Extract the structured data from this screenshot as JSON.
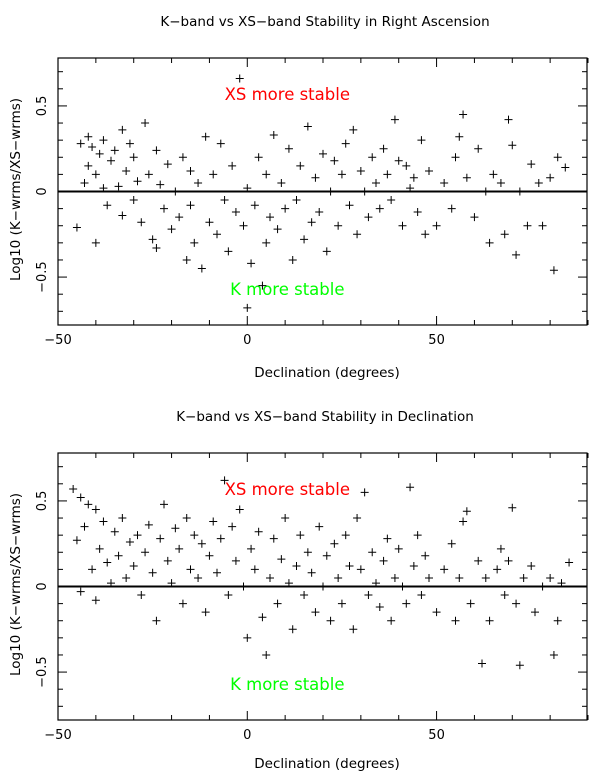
{
  "chart_data": [
    {
      "type": "scatter",
      "title": "K−band vs XS−band Stability in Right Ascension",
      "xlabel": "Declination (degrees)",
      "ylabel": "Log10 (K−wrms/XS−wrms)",
      "xlim": [
        -50,
        90
      ],
      "ylim": [
        -0.78,
        0.78
      ],
      "xticks": [
        -50,
        0,
        50
      ],
      "yticks": [
        -0.5,
        0,
        0.5
      ],
      "xtick_labels": [
        "−50",
        "0",
        "50"
      ],
      "ytick_labels": [
        "−0.5",
        "0",
        "0.5"
      ],
      "reference_line_y": 0,
      "marker": "+",
      "annotations": [
        {
          "text": "XS more stable",
          "x": 0,
          "y": 0.57,
          "color": "#ff0000"
        },
        {
          "text": "K more stable",
          "x": 0,
          "y": -0.57,
          "color": "#00ff00"
        }
      ],
      "points": [
        [
          -45,
          -0.21
        ],
        [
          -44,
          0.28
        ],
        [
          -43,
          0.05
        ],
        [
          -42,
          0.32
        ],
        [
          -42,
          0.15
        ],
        [
          -41,
          0.26
        ],
        [
          -40,
          0.1
        ],
        [
          -40,
          -0.3
        ],
        [
          -39,
          0.22
        ],
        [
          -38,
          0.3
        ],
        [
          -38,
          0.02
        ],
        [
          -37,
          -0.08
        ],
        [
          -36,
          0.18
        ],
        [
          -35,
          0.24
        ],
        [
          -34,
          0.03
        ],
        [
          -33,
          0.36
        ],
        [
          -33,
          -0.14
        ],
        [
          -32,
          0.12
        ],
        [
          -31,
          0.28
        ],
        [
          -30,
          -0.05
        ],
        [
          -30,
          0.2
        ],
        [
          -29,
          0.06
        ],
        [
          -28,
          -0.18
        ],
        [
          -27,
          0.4
        ],
        [
          -26,
          0.1
        ],
        [
          -25,
          -0.28
        ],
        [
          -24,
          0.24
        ],
        [
          -24,
          -0.33
        ],
        [
          -23,
          0.04
        ],
        [
          -22,
          -0.1
        ],
        [
          -21,
          0.16
        ],
        [
          -20,
          -0.22
        ],
        [
          -19,
          0.0
        ],
        [
          -18,
          -0.15
        ],
        [
          -17,
          0.2
        ],
        [
          -16,
          -0.4
        ],
        [
          -15,
          -0.08
        ],
        [
          -15,
          0.12
        ],
        [
          -14,
          -0.3
        ],
        [
          -13,
          0.05
        ],
        [
          -12,
          -0.45
        ],
        [
          -11,
          0.32
        ],
        [
          -10,
          -0.18
        ],
        [
          -9,
          0.1
        ],
        [
          -8,
          -0.25
        ],
        [
          -7,
          0.28
        ],
        [
          -6,
          -0.05
        ],
        [
          -5,
          -0.35
        ],
        [
          -4,
          0.15
        ],
        [
          -3,
          -0.12
        ],
        [
          -2,
          0.66
        ],
        [
          -1,
          -0.2
        ],
        [
          0,
          0.02
        ],
        [
          0,
          -0.68
        ],
        [
          1,
          -0.42
        ],
        [
          2,
          -0.08
        ],
        [
          3,
          0.2
        ],
        [
          4,
          -0.55
        ],
        [
          5,
          -0.3
        ],
        [
          5,
          0.1
        ],
        [
          6,
          -0.15
        ],
        [
          7,
          0.33
        ],
        [
          8,
          -0.22
        ],
        [
          9,
          0.05
        ],
        [
          10,
          -0.1
        ],
        [
          11,
          0.25
        ],
        [
          12,
          -0.4
        ],
        [
          13,
          -0.05
        ],
        [
          14,
          0.15
        ],
        [
          15,
          -0.28
        ],
        [
          16,
          0.38
        ],
        [
          17,
          -0.18
        ],
        [
          18,
          0.08
        ],
        [
          19,
          -0.12
        ],
        [
          20,
          0.22
        ],
        [
          21,
          -0.35
        ],
        [
          22,
          0.0
        ],
        [
          23,
          0.18
        ],
        [
          24,
          -0.2
        ],
        [
          25,
          0.1
        ],
        [
          26,
          0.28
        ],
        [
          27,
          -0.08
        ],
        [
          28,
          0.36
        ],
        [
          29,
          -0.25
        ],
        [
          30,
          0.12
        ],
        [
          31,
          0.0
        ],
        [
          32,
          -0.15
        ],
        [
          33,
          0.2
        ],
        [
          34,
          0.05
        ],
        [
          35,
          -0.1
        ],
        [
          36,
          0.25
        ],
        [
          37,
          0.1
        ],
        [
          38,
          -0.05
        ],
        [
          39,
          0.42
        ],
        [
          40,
          0.18
        ],
        [
          41,
          -0.2
        ],
        [
          42,
          0.15
        ],
        [
          43,
          0.02
        ],
        [
          44,
          0.08
        ],
        [
          45,
          -0.12
        ],
        [
          46,
          0.3
        ],
        [
          47,
          -0.25
        ],
        [
          48,
          0.12
        ],
        [
          50,
          -0.2
        ],
        [
          52,
          0.05
        ],
        [
          54,
          -0.1
        ],
        [
          55,
          0.2
        ],
        [
          56,
          0.32
        ],
        [
          57,
          0.45
        ],
        [
          58,
          0.08
        ],
        [
          60,
          -0.15
        ],
        [
          61,
          0.25
        ],
        [
          63,
          0.0
        ],
        [
          64,
          -0.3
        ],
        [
          65,
          0.1
        ],
        [
          67,
          0.05
        ],
        [
          68,
          -0.25
        ],
        [
          69,
          0.42
        ],
        [
          70,
          0.27
        ],
        [
          71,
          -0.37
        ],
        [
          72,
          0.0
        ],
        [
          74,
          -0.2
        ],
        [
          75,
          0.16
        ],
        [
          77,
          0.05
        ],
        [
          78,
          -0.2
        ],
        [
          80,
          0.08
        ],
        [
          81,
          -0.46
        ],
        [
          82,
          0.2
        ],
        [
          84,
          0.14
        ]
      ]
    },
    {
      "type": "scatter",
      "title": "K−band vs XS−band Stability in Declination",
      "xlabel": "Declination (degrees)",
      "ylabel": "Log10 (K−wrms/XS−wrms)",
      "xlim": [
        -50,
        90
      ],
      "ylim": [
        -0.78,
        0.78
      ],
      "xticks": [
        -50,
        0,
        50
      ],
      "yticks": [
        -0.5,
        0,
        0.5
      ],
      "xtick_labels": [
        "−50",
        "0",
        "50"
      ],
      "ytick_labels": [
        "−0.5",
        "0",
        "0.5"
      ],
      "reference_line_y": 0,
      "marker": "+",
      "annotations": [
        {
          "text": "XS more stable",
          "x": 0,
          "y": 0.57,
          "color": "#ff0000"
        },
        {
          "text": "K more stable",
          "x": 0,
          "y": -0.57,
          "color": "#00ff00"
        }
      ],
      "points": [
        [
          -46,
          0.57
        ],
        [
          -45,
          0.27
        ],
        [
          -44,
          0.52
        ],
        [
          -44,
          -0.03
        ],
        [
          -43,
          0.35
        ],
        [
          -42,
          0.48
        ],
        [
          -41,
          0.1
        ],
        [
          -40,
          0.45
        ],
        [
          -40,
          -0.08
        ],
        [
          -39,
          0.22
        ],
        [
          -38,
          0.38
        ],
        [
          -37,
          0.14
        ],
        [
          -36,
          0.02
        ],
        [
          -35,
          0.32
        ],
        [
          -34,
          0.18
        ],
        [
          -33,
          0.4
        ],
        [
          -32,
          0.05
        ],
        [
          -31,
          0.26
        ],
        [
          -30,
          0.12
        ],
        [
          -29,
          0.3
        ],
        [
          -28,
          -0.05
        ],
        [
          -27,
          0.2
        ],
        [
          -26,
          0.36
        ],
        [
          -25,
          0.08
        ],
        [
          -24,
          -0.2
        ],
        [
          -23,
          0.28
        ],
        [
          -22,
          0.48
        ],
        [
          -21,
          0.15
        ],
        [
          -20,
          0.02
        ],
        [
          -19,
          0.34
        ],
        [
          -18,
          0.22
        ],
        [
          -17,
          -0.1
        ],
        [
          -16,
          0.4
        ],
        [
          -15,
          0.1
        ],
        [
          -14,
          0.3
        ],
        [
          -13,
          0.05
        ],
        [
          -12,
          0.25
        ],
        [
          -11,
          -0.15
        ],
        [
          -10,
          0.18
        ],
        [
          -9,
          0.38
        ],
        [
          -8,
          0.08
        ],
        [
          -7,
          0.28
        ],
        [
          -6,
          0.62
        ],
        [
          -5,
          -0.05
        ],
        [
          -4,
          0.35
        ],
        [
          -3,
          0.15
        ],
        [
          -2,
          0.45
        ],
        [
          -1,
          0.0
        ],
        [
          0,
          -0.3
        ],
        [
          1,
          0.22
        ],
        [
          2,
          0.1
        ],
        [
          3,
          0.32
        ],
        [
          4,
          -0.18
        ],
        [
          5,
          -0.4
        ],
        [
          6,
          0.05
        ],
        [
          7,
          0.28
        ],
        [
          8,
          -0.1
        ],
        [
          9,
          0.16
        ],
        [
          10,
          0.4
        ],
        [
          11,
          0.02
        ],
        [
          12,
          -0.25
        ],
        [
          13,
          0.12
        ],
        [
          14,
          0.3
        ],
        [
          15,
          -0.05
        ],
        [
          16,
          0.2
        ],
        [
          17,
          0.08
        ],
        [
          18,
          -0.15
        ],
        [
          19,
          0.35
        ],
        [
          20,
          0.0
        ],
        [
          21,
          0.18
        ],
        [
          22,
          -0.2
        ],
        [
          23,
          0.25
        ],
        [
          24,
          0.05
        ],
        [
          25,
          -0.1
        ],
        [
          26,
          0.3
        ],
        [
          27,
          0.12
        ],
        [
          28,
          -0.25
        ],
        [
          29,
          0.4
        ],
        [
          30,
          0.1
        ],
        [
          31,
          0.55
        ],
        [
          32,
          -0.05
        ],
        [
          33,
          0.2
        ],
        [
          34,
          0.02
        ],
        [
          35,
          -0.12
        ],
        [
          36,
          0.15
        ],
        [
          37,
          0.28
        ],
        [
          38,
          -0.2
        ],
        [
          39,
          0.05
        ],
        [
          40,
          0.22
        ],
        [
          41,
          0.0
        ],
        [
          42,
          -0.1
        ],
        [
          43,
          0.58
        ],
        [
          44,
          0.12
        ],
        [
          45,
          0.3
        ],
        [
          46,
          -0.05
        ],
        [
          47,
          0.18
        ],
        [
          48,
          0.05
        ],
        [
          50,
          -0.15
        ],
        [
          52,
          0.1
        ],
        [
          54,
          0.25
        ],
        [
          55,
          -0.2
        ],
        [
          56,
          0.05
        ],
        [
          57,
          0.38
        ],
        [
          58,
          0.44
        ],
        [
          59,
          -0.1
        ],
        [
          61,
          0.15
        ],
        [
          62,
          -0.45
        ],
        [
          63,
          0.05
        ],
        [
          64,
          -0.2
        ],
        [
          66,
          0.1
        ],
        [
          67,
          0.22
        ],
        [
          68,
          -0.05
        ],
        [
          69,
          0.15
        ],
        [
          70,
          0.46
        ],
        [
          71,
          -0.1
        ],
        [
          72,
          -0.46
        ],
        [
          73,
          0.05
        ],
        [
          75,
          0.12
        ],
        [
          76,
          -0.15
        ],
        [
          78,
          0.0
        ],
        [
          80,
          0.05
        ],
        [
          81,
          -0.4
        ],
        [
          82,
          -0.2
        ],
        [
          83,
          0.02
        ],
        [
          85,
          0.14
        ]
      ]
    }
  ]
}
